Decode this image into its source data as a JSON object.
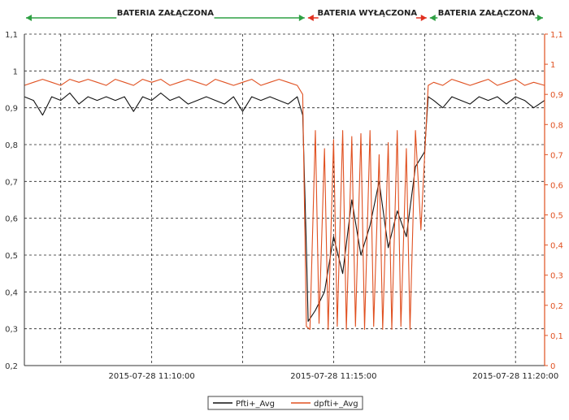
{
  "chart_data": {
    "type": "line",
    "title": "",
    "xlabel": "",
    "ylabel": "",
    "x_tick_labels": [
      "2015-07-28 11:10:00",
      "2015-07-28 11:15:00",
      "2015-07-28 11:20:00"
    ],
    "x_tick_minutes": [
      10,
      15,
      20
    ],
    "x_range_minutes": [
      6.5,
      20.8
    ],
    "y_left": {
      "range": [
        0.2,
        1.1
      ],
      "ticks": [
        0.2,
        0.3,
        0.4,
        0.5,
        0.6,
        0.7,
        0.8,
        0.9,
        1.0,
        1.1
      ],
      "tick_labels": [
        "0,2",
        "0,3",
        "0,4",
        "0,5",
        "0,6",
        "0,7",
        "0,8",
        "0,9",
        "1",
        "1,1"
      ]
    },
    "y_right": {
      "range": [
        0.0,
        1.1
      ],
      "ticks": [
        0.0,
        0.1,
        0.2,
        0.3,
        0.4,
        0.5,
        0.6,
        0.7,
        0.8,
        0.9,
        1.0,
        1.1
      ],
      "tick_labels": [
        "0",
        "0,1",
        "0,2",
        "0,3",
        "0,4",
        "0,5",
        "0,6",
        "0,7",
        "0,8",
        "0,9",
        "1",
        "1,1"
      ],
      "color": "#e05020"
    },
    "grid": true,
    "grid_style": "dashed",
    "annotations": [
      {
        "label": "BATERIA ZAŁĄCZONA",
        "x_from": 6.5,
        "x_to": 14.25,
        "color": "#2ea043"
      },
      {
        "label": "BATERIA WYŁĄCZONA",
        "x_from": 14.25,
        "x_to": 17.6,
        "color": "#e03020"
      },
      {
        "label": "BATERIA ZAŁĄCZONA",
        "x_from": 17.6,
        "x_to": 20.8,
        "color": "#2ea043"
      }
    ],
    "series": [
      {
        "name": "Pfti+_Avg",
        "axis": "left",
        "color": "#111111",
        "x": [
          6.5,
          6.75,
          7.0,
          7.25,
          7.5,
          7.75,
          8.0,
          8.25,
          8.5,
          8.75,
          9.0,
          9.25,
          9.5,
          9.75,
          10.0,
          10.25,
          10.5,
          10.75,
          11.0,
          11.25,
          11.5,
          11.75,
          12.0,
          12.25,
          12.5,
          12.75,
          13.0,
          13.25,
          13.5,
          13.75,
          14.0,
          14.15,
          14.25,
          14.3,
          14.5,
          14.75,
          15.0,
          15.25,
          15.5,
          15.75,
          16.0,
          16.25,
          16.5,
          16.75,
          17.0,
          17.25,
          17.5,
          17.6,
          17.75,
          18.0,
          18.25,
          18.5,
          18.75,
          19.0,
          19.25,
          19.5,
          19.75,
          20.0,
          20.25,
          20.5,
          20.8
        ],
        "y": [
          0.93,
          0.92,
          0.88,
          0.93,
          0.92,
          0.94,
          0.91,
          0.93,
          0.92,
          0.93,
          0.92,
          0.93,
          0.89,
          0.93,
          0.92,
          0.94,
          0.92,
          0.93,
          0.91,
          0.92,
          0.93,
          0.92,
          0.91,
          0.93,
          0.89,
          0.93,
          0.92,
          0.93,
          0.92,
          0.91,
          0.93,
          0.88,
          0.52,
          0.32,
          0.35,
          0.4,
          0.55,
          0.45,
          0.65,
          0.5,
          0.58,
          0.7,
          0.52,
          0.62,
          0.55,
          0.74,
          0.78,
          0.93,
          0.92,
          0.9,
          0.93,
          0.92,
          0.91,
          0.93,
          0.92,
          0.93,
          0.91,
          0.93,
          0.92,
          0.9,
          0.92
        ]
      },
      {
        "name": "dpfti+_Avg",
        "axis": "right",
        "color": "#e05020",
        "x": [
          6.5,
          6.75,
          7.0,
          7.25,
          7.5,
          7.75,
          8.0,
          8.25,
          8.5,
          8.75,
          9.0,
          9.25,
          9.5,
          9.75,
          10.0,
          10.25,
          10.5,
          10.75,
          11.0,
          11.25,
          11.5,
          11.75,
          12.0,
          12.25,
          12.5,
          12.75,
          13.0,
          13.25,
          13.5,
          13.75,
          14.0,
          14.15,
          14.25,
          14.35,
          14.5,
          14.6,
          14.75,
          14.85,
          15.0,
          15.1,
          15.25,
          15.35,
          15.5,
          15.6,
          15.75,
          15.85,
          16.0,
          16.1,
          16.25,
          16.35,
          16.5,
          16.6,
          16.75,
          16.85,
          17.0,
          17.1,
          17.25,
          17.4,
          17.6,
          17.75,
          18.0,
          18.25,
          18.5,
          18.75,
          19.0,
          19.25,
          19.5,
          19.75,
          20.0,
          20.25,
          20.5,
          20.8
        ],
        "y": [
          0.93,
          0.94,
          0.95,
          0.94,
          0.93,
          0.95,
          0.94,
          0.95,
          0.94,
          0.93,
          0.95,
          0.94,
          0.93,
          0.95,
          0.94,
          0.95,
          0.93,
          0.94,
          0.95,
          0.94,
          0.93,
          0.95,
          0.94,
          0.93,
          0.94,
          0.95,
          0.93,
          0.94,
          0.95,
          0.94,
          0.93,
          0.9,
          0.13,
          0.12,
          0.78,
          0.14,
          0.72,
          0.12,
          0.75,
          0.13,
          0.78,
          0.12,
          0.76,
          0.13,
          0.77,
          0.12,
          0.78,
          0.13,
          0.7,
          0.12,
          0.74,
          0.12,
          0.78,
          0.13,
          0.72,
          0.12,
          0.78,
          0.45,
          0.93,
          0.94,
          0.93,
          0.95,
          0.94,
          0.93,
          0.94,
          0.95,
          0.93,
          0.94,
          0.95,
          0.93,
          0.94,
          0.93
        ]
      }
    ],
    "legend_position": "bottom-center"
  }
}
